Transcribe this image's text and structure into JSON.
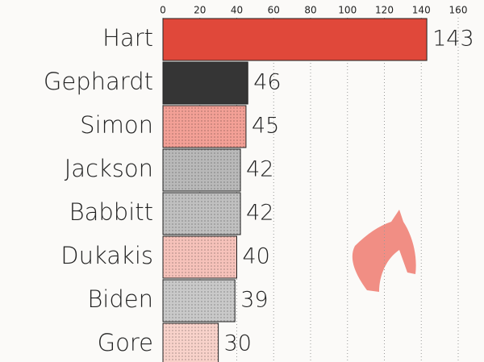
{
  "chart_data": {
    "type": "barh",
    "categories": [
      "Hart",
      "Gephardt",
      "Simon",
      "Jackson",
      "Babbitt",
      "Dukakis",
      "Biden",
      "Gore"
    ],
    "values": [
      143,
      46,
      45,
      42,
      42,
      40,
      39,
      30
    ],
    "colors": [
      "#e0483a",
      "#353535",
      "#f3a096",
      "#b9b9b9",
      "#c0c0c0",
      "#f6c2ba",
      "#c9c9c9",
      "#f8d2ca"
    ],
    "xlim": [
      0,
      160
    ],
    "xticks": [
      0,
      20,
      40,
      60,
      80,
      100,
      120,
      140,
      160
    ],
    "grid": true
  }
}
